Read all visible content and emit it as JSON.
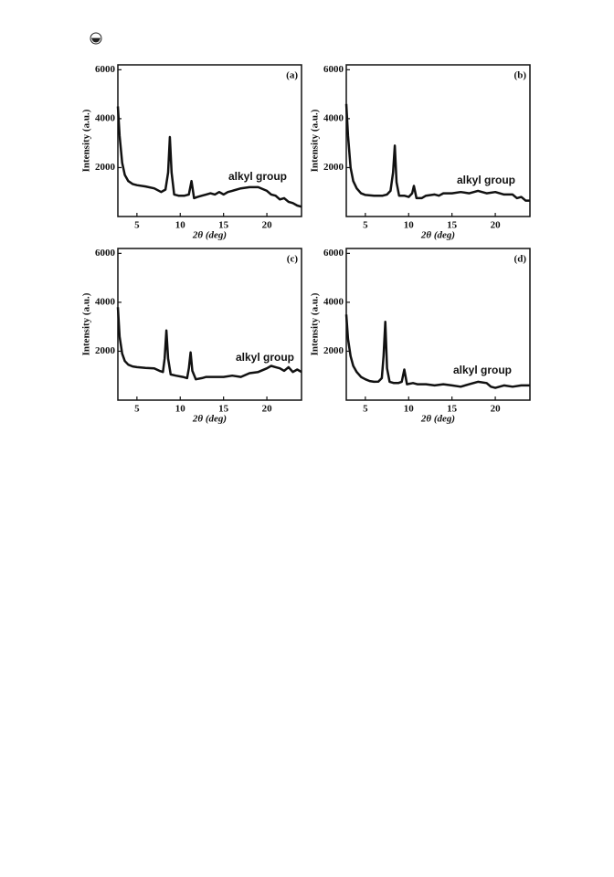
{
  "chart_data": [
    {
      "type": "line",
      "panel_label": "(a)",
      "annotation": "alkyl group",
      "xlabel": "2θ (deg)",
      "ylabel": "Intensity (a.u.)",
      "xlim": [
        2.8,
        24
      ],
      "ylim": [
        0,
        6200
      ],
      "xticks": [
        5,
        10,
        15,
        20
      ],
      "yticks": [
        2000,
        4000,
        6000
      ],
      "color": "#111111",
      "x": [
        2.8,
        3.0,
        3.3,
        3.6,
        4.0,
        4.5,
        5,
        6,
        7,
        7.8,
        8.3,
        8.6,
        8.8,
        9.0,
        9.3,
        9.8,
        10.5,
        11.0,
        11.3,
        11.6,
        12.0,
        12.5,
        13,
        13.5,
        14,
        14.5,
        15,
        15.5,
        16,
        17,
        18,
        19,
        20,
        20.5,
        21,
        21.5,
        22,
        22.5,
        23,
        23.5,
        24
      ],
      "values": [
        4500,
        3300,
        2200,
        1700,
        1450,
        1330,
        1280,
        1230,
        1150,
        1000,
        1100,
        1800,
        3250,
        1800,
        900,
        850,
        850,
        900,
        1450,
        750,
        800,
        850,
        900,
        950,
        900,
        1000,
        900,
        1000,
        1050,
        1150,
        1200,
        1200,
        1050,
        900,
        850,
        700,
        750,
        600,
        550,
        450,
        400
      ]
    },
    {
      "type": "line",
      "panel_label": "(b)",
      "annotation": "alkyl group",
      "xlabel": "2θ (deg)",
      "ylabel": "Intensity (a.u.)",
      "xlim": [
        2.8,
        24
      ],
      "ylim": [
        0,
        6200
      ],
      "xticks": [
        5,
        10,
        15,
        20
      ],
      "yticks": [
        2000,
        4000,
        6000
      ],
      "color": "#111111",
      "x": [
        2.8,
        3.0,
        3.3,
        3.6,
        4.0,
        4.5,
        5,
        6,
        7,
        7.5,
        7.9,
        8.2,
        8.4,
        8.6,
        8.9,
        9.5,
        10.0,
        10.4,
        10.6,
        10.9,
        11.5,
        12,
        13,
        13.5,
        14,
        15,
        16,
        17,
        18,
        19,
        20,
        21,
        22,
        22.5,
        23,
        23.5,
        24
      ],
      "values": [
        4600,
        3300,
        2000,
        1450,
        1150,
        950,
        880,
        850,
        850,
        900,
        1050,
        1800,
        2900,
        1400,
        850,
        850,
        800,
        950,
        1250,
        750,
        750,
        850,
        900,
        850,
        950,
        950,
        1000,
        950,
        1050,
        950,
        1000,
        900,
        900,
        750,
        800,
        650,
        650
      ]
    },
    {
      "type": "line",
      "panel_label": "(c)",
      "annotation": "alkyl group",
      "xlabel": "2θ (deg)",
      "ylabel": "Intensity (a.u.)",
      "xlim": [
        2.8,
        24
      ],
      "ylim": [
        0,
        6200
      ],
      "xticks": [
        5,
        10,
        15,
        20
      ],
      "yticks": [
        2000,
        4000,
        6000
      ],
      "color": "#111111",
      "x": [
        2.8,
        3.0,
        3.3,
        3.6,
        4.0,
        4.5,
        5,
        6,
        7,
        7.6,
        8.0,
        8.2,
        8.4,
        8.6,
        8.9,
        9.5,
        10.3,
        10.8,
        11.0,
        11.2,
        11.4,
        11.8,
        12.5,
        13,
        14,
        15,
        16,
        17,
        18,
        19,
        20,
        20.5,
        21,
        21.5,
        22,
        22.5,
        23,
        23.5,
        24
      ],
      "values": [
        3800,
        2600,
        1900,
        1600,
        1450,
        1380,
        1350,
        1320,
        1300,
        1200,
        1150,
        1700,
        2850,
        1700,
        1050,
        1000,
        950,
        900,
        1300,
        1950,
        1200,
        850,
        900,
        950,
        950,
        950,
        1000,
        950,
        1100,
        1150,
        1300,
        1400,
        1350,
        1300,
        1200,
        1350,
        1150,
        1250,
        1150
      ]
    },
    {
      "type": "line",
      "panel_label": "(d)",
      "annotation": "alkyl group",
      "xlabel": "2θ (deg)",
      "ylabel": "Intensity (a.u.)",
      "xlim": [
        2.8,
        24
      ],
      "ylim": [
        0,
        6200
      ],
      "xticks": [
        5,
        10,
        15,
        20
      ],
      "yticks": [
        2000,
        4000,
        6000
      ],
      "color": "#111111",
      "x": [
        2.8,
        3.0,
        3.3,
        3.6,
        4.0,
        4.5,
        5,
        5.5,
        6,
        6.5,
        6.9,
        7.1,
        7.3,
        7.5,
        7.8,
        8.3,
        8.8,
        9.2,
        9.5,
        9.8,
        10.5,
        11,
        12,
        13,
        14,
        15,
        16,
        17,
        18,
        19,
        19.5,
        20,
        21,
        22,
        23,
        24
      ],
      "values": [
        3500,
        2500,
        1800,
        1400,
        1150,
        950,
        850,
        780,
        750,
        760,
        900,
        1800,
        3200,
        1300,
        750,
        700,
        700,
        750,
        1250,
        650,
        700,
        650,
        650,
        600,
        650,
        600,
        550,
        650,
        750,
        700,
        550,
        500,
        600,
        550,
        600,
        600
      ]
    }
  ]
}
